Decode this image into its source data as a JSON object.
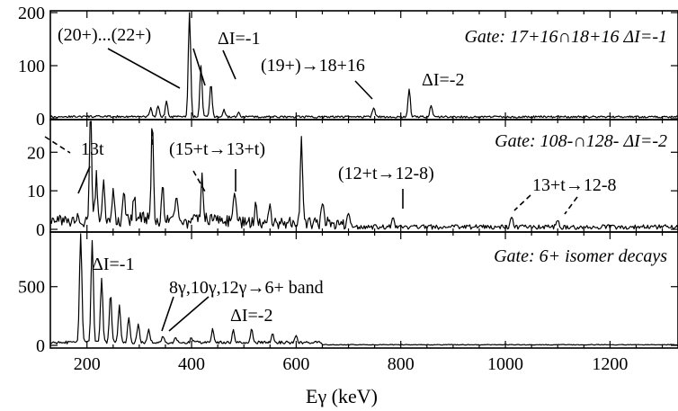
{
  "chart_data": {
    "type": "line",
    "xlabel": "Eγ (keV)",
    "x_range": [
      130,
      1330
    ],
    "x_ticks": [
      200,
      400,
      600,
      800,
      1000,
      1200
    ],
    "panels": [
      {
        "gate_label": "Gate: 17+16∩18+16 ΔI=-1",
        "ylim": [
          0,
          200
        ],
        "y_ticks": [
          0,
          100,
          200
        ],
        "peaks": [
          {
            "x": 322,
            "y": 18
          },
          {
            "x": 336,
            "y": 22
          },
          {
            "x": 352,
            "y": 30
          },
          {
            "x": 396,
            "y": 200
          },
          {
            "x": 418,
            "y": 95
          },
          {
            "x": 437,
            "y": 62
          },
          {
            "x": 462,
            "y": 14
          },
          {
            "x": 490,
            "y": 10
          },
          {
            "x": 748,
            "y": 18
          },
          {
            "x": 816,
            "y": 52
          },
          {
            "x": 858,
            "y": 22
          }
        ],
        "annotations": [
          {
            "text": "(20+)...(22+)"
          },
          {
            "text": "ΔI=-1"
          },
          {
            "text": "(19+)→18+16"
          },
          {
            "text": "ΔI=-2"
          }
        ]
      },
      {
        "gate_label": "Gate: 108-∩128- ΔI=-2",
        "ylim": [
          0,
          28
        ],
        "y_ticks": [
          0,
          10,
          20
        ],
        "peaks": [
          {
            "x": 207,
            "y": 28
          },
          {
            "x": 218,
            "y": 11
          },
          {
            "x": 232,
            "y": 9
          },
          {
            "x": 250,
            "y": 8
          },
          {
            "x": 270,
            "y": 7
          },
          {
            "x": 290,
            "y": 6
          },
          {
            "x": 325,
            "y": 25
          },
          {
            "x": 345,
            "y": 9
          },
          {
            "x": 372,
            "y": 7
          },
          {
            "x": 420,
            "y": 11
          },
          {
            "x": 482,
            "y": 8
          },
          {
            "x": 523,
            "y": 6
          },
          {
            "x": 550,
            "y": 6
          },
          {
            "x": 610,
            "y": 21
          },
          {
            "x": 650,
            "y": 5
          },
          {
            "x": 700,
            "y": 4
          },
          {
            "x": 785,
            "y": 3
          },
          {
            "x": 1012,
            "y": 3
          },
          {
            "x": 1100,
            "y": 2
          }
        ],
        "annotations": [
          {
            "text": "13t"
          },
          {
            "text": "(15+t→13+t)"
          },
          {
            "text": "(12+t→12-8)"
          },
          {
            "text": "13+t→12-8"
          }
        ]
      },
      {
        "gate_label": "Gate: 6+ isomer decays",
        "ylim": [
          0,
          950
        ],
        "y_ticks": [
          0,
          500
        ],
        "peaks": [
          {
            "x": 188,
            "y": 950
          },
          {
            "x": 210,
            "y": 880
          },
          {
            "x": 228,
            "y": 540
          },
          {
            "x": 245,
            "y": 420
          },
          {
            "x": 262,
            "y": 330
          },
          {
            "x": 280,
            "y": 220
          },
          {
            "x": 298,
            "y": 160
          },
          {
            "x": 318,
            "y": 110
          },
          {
            "x": 345,
            "y": 60
          },
          {
            "x": 370,
            "y": 45
          },
          {
            "x": 400,
            "y": 40
          },
          {
            "x": 440,
            "y": 110
          },
          {
            "x": 480,
            "y": 100
          },
          {
            "x": 515,
            "y": 120
          },
          {
            "x": 555,
            "y": 70
          },
          {
            "x": 600,
            "y": 50
          }
        ],
        "annotations": [
          {
            "text": "ΔI=-1"
          },
          {
            "text": "8γ,10γ,12γ→6+ band"
          },
          {
            "text": "ΔI=-2"
          }
        ]
      }
    ]
  }
}
